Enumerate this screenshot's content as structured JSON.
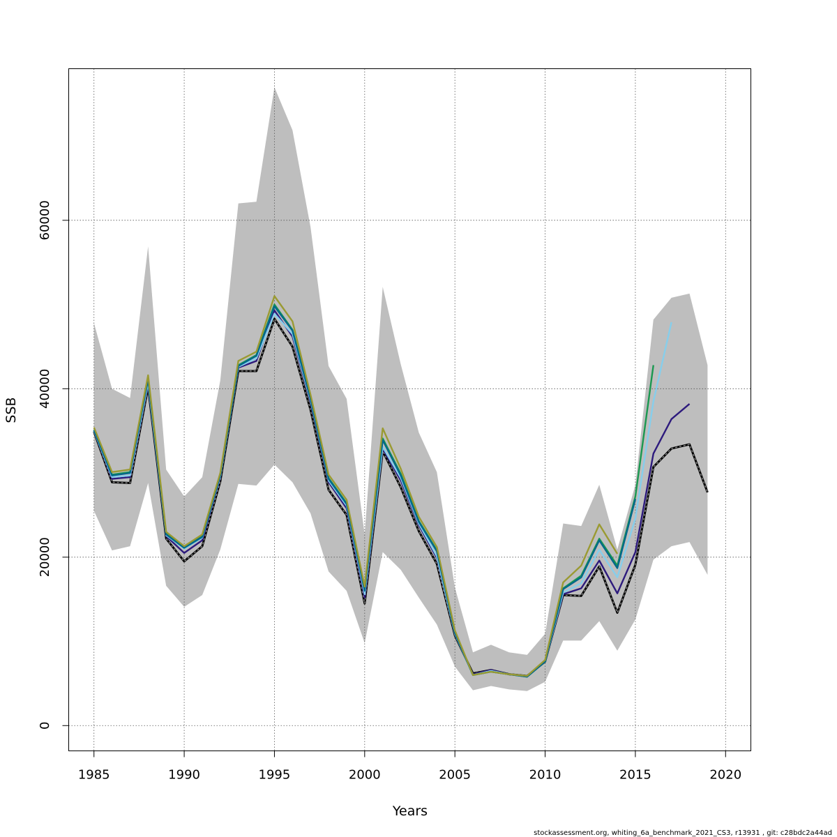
{
  "chart_data": {
    "type": "line",
    "xlabel": "Years",
    "ylabel": "SSB",
    "xlim": [
      1983.6,
      2021.4
    ],
    "ylim": [
      -3000,
      78000
    ],
    "xticks": [
      "1985",
      "1990",
      "1995",
      "2000",
      "2005",
      "2010",
      "2015",
      "2020"
    ],
    "yticks": [
      "0",
      "20000",
      "40000",
      "60000"
    ],
    "grid": true,
    "legend": "none",
    "footer": "stockassessment.org, whiting_6a_benchmark_2021_CS3, r13931 , git: c28bdc2a44ad",
    "confidence_band": {
      "x": [
        1985,
        1986,
        1987,
        1988,
        1989,
        1990,
        1991,
        1992,
        1993,
        1994,
        1995,
        1996,
        1997,
        1998,
        1999,
        2000,
        2001,
        2002,
        2003,
        2004,
        2005,
        2006,
        2007,
        2008,
        2009,
        2010,
        2011,
        2012,
        2013,
        2014,
        2015,
        2016,
        2017,
        2018,
        2019
      ],
      "lower": [
        25500,
        20800,
        21300,
        28800,
        16600,
        14100,
        15500,
        20900,
        28700,
        28500,
        31000,
        28900,
        25200,
        18300,
        16000,
        9800,
        20600,
        18500,
        15200,
        12000,
        7000,
        4200,
        4700,
        4300,
        4100,
        5200,
        10100,
        10100,
        12400,
        8900,
        12600,
        19700,
        21300,
        21800,
        17900
      ],
      "upper": [
        47800,
        40000,
        38900,
        56900,
        30400,
        27200,
        29500,
        41000,
        62000,
        62200,
        75800,
        70700,
        59200,
        42700,
        38800,
        22700,
        52100,
        42900,
        34800,
        30100,
        16400,
        8700,
        9600,
        8700,
        8400,
        10900,
        24000,
        23700,
        28600,
        20900,
        28600,
        48200,
        50800,
        51300,
        42800
      ],
      "color": "#bebebe"
    },
    "series": [
      {
        "color": "#1a1a1a",
        "style": "dashed",
        "x": [
          1985,
          1986,
          1987,
          1988,
          1989,
          1990,
          1991,
          1992,
          1993,
          1994,
          1995,
          1996,
          1997,
          1998,
          1999,
          2000,
          2001,
          2002,
          2003,
          2004,
          2005,
          2006,
          2007,
          2008,
          2009,
          2010,
          2011,
          2012,
          2013,
          2014,
          2015,
          2016,
          2017,
          2018,
          2019
        ],
        "values": [
          34900,
          28900,
          28800,
          40200,
          22200,
          19500,
          21300,
          29000,
          42100,
          42100,
          48300,
          45000,
          37500,
          28000,
          25000,
          14500,
          32600,
          28300,
          23100,
          19200,
          10700,
          6200,
          6600,
          6100,
          5900,
          7600,
          15500,
          15400,
          18900,
          13400,
          19100,
          30700,
          32900,
          33400,
          27700
        ]
      },
      {
        "color": "#2d1a7d",
        "style": "solid",
        "x": [
          1985,
          1986,
          1987,
          1988,
          1989,
          1990,
          1991,
          1992,
          1993,
          1994,
          1995,
          1996,
          1997,
          1998,
          1999,
          2000,
          2001,
          2002,
          2003,
          2004,
          2005,
          2006,
          2007,
          2008,
          2009,
          2010,
          2011,
          2012,
          2013,
          2014,
          2015,
          2016,
          2017,
          2018
        ],
        "values": [
          35000,
          29300,
          29500,
          40500,
          22500,
          20500,
          22000,
          29500,
          42500,
          43300,
          49300,
          46200,
          38400,
          28900,
          25800,
          15200,
          32900,
          29100,
          23800,
          19900,
          10900,
          6100,
          6600,
          6100,
          5900,
          7600,
          15600,
          16300,
          19600,
          15700,
          20600,
          32300,
          36400,
          38200
        ]
      },
      {
        "color": "#87ceeb",
        "style": "solid",
        "x": [
          1985,
          1986,
          1987,
          1988,
          1989,
          1990,
          1991,
          1992,
          1993,
          1994,
          1995,
          1996,
          1997,
          1998,
          1999,
          2000,
          2001,
          2002,
          2003,
          2004,
          2005,
          2006,
          2007,
          2008,
          2009,
          2010,
          2011,
          2012,
          2013,
          2014,
          2015,
          2016,
          2017
        ],
        "values": [
          35000,
          29500,
          29700,
          40700,
          22600,
          21000,
          22300,
          29600,
          42600,
          43600,
          48900,
          46500,
          38600,
          29100,
          26100,
          15600,
          33100,
          29400,
          24000,
          20100,
          10900,
          6000,
          6500,
          6100,
          5900,
          7600,
          15800,
          16900,
          20900,
          17600,
          24600,
          38500,
          47900
        ]
      },
      {
        "color": "#1a9850",
        "style": "solid",
        "x": [
          1985,
          1986,
          1987,
          1988,
          1989,
          1990,
          1991,
          1992,
          1993,
          1994,
          1995,
          1996,
          1997,
          1998,
          1999,
          2000,
          2001,
          2002,
          2003,
          2004,
          2005,
          2006,
          2007,
          2008,
          2009,
          2010,
          2011,
          2012,
          2013,
          2014,
          2015,
          2016
        ],
        "values": [
          35100,
          29800,
          30100,
          41200,
          22800,
          21200,
          22500,
          29800,
          42800,
          44000,
          50000,
          47000,
          38900,
          29400,
          26400,
          16100,
          34100,
          29900,
          24300,
          20800,
          11100,
          6000,
          6400,
          6100,
          5800,
          7600,
          16300,
          17800,
          22200,
          19000,
          27200,
          42800
        ]
      },
      {
        "color": "#00688b",
        "style": "solid",
        "x": [
          1985,
          1986,
          1987,
          1988,
          1989,
          1990,
          1991,
          1992,
          1993,
          1994,
          1995,
          1996,
          1997,
          1998,
          1999,
          2000,
          2001,
          2002,
          2003,
          2004,
          2005,
          2006,
          2007,
          2008,
          2009,
          2010,
          2011,
          2012,
          2013,
          2014,
          2015
        ],
        "values": [
          35100,
          29700,
          30000,
          41100,
          22700,
          21100,
          22400,
          29700,
          42700,
          43900,
          49800,
          46900,
          38800,
          29300,
          26300,
          16000,
          33900,
          29700,
          24200,
          20700,
          11000,
          6000,
          6400,
          6100,
          5800,
          7600,
          16200,
          17600,
          22000,
          18700,
          26900
        ]
      },
      {
        "color": "#9a9a32",
        "style": "solid",
        "x": [
          1985,
          1986,
          1987,
          1988,
          1989,
          1990,
          1991,
          1992,
          1993,
          1994,
          1995,
          1996,
          1997,
          1998,
          1999,
          2000,
          2001,
          2002,
          2003,
          2004,
          2005,
          2006,
          2007,
          2008,
          2009,
          2010,
          2011,
          2012,
          2013,
          2014
        ],
        "values": [
          35400,
          30100,
          30400,
          41600,
          23000,
          21300,
          22700,
          30000,
          43300,
          44400,
          51000,
          48000,
          39300,
          29800,
          26800,
          16500,
          35300,
          30500,
          24800,
          21200,
          11300,
          6000,
          6400,
          6100,
          5900,
          7800,
          17000,
          19000,
          23900,
          20400
        ]
      }
    ]
  }
}
